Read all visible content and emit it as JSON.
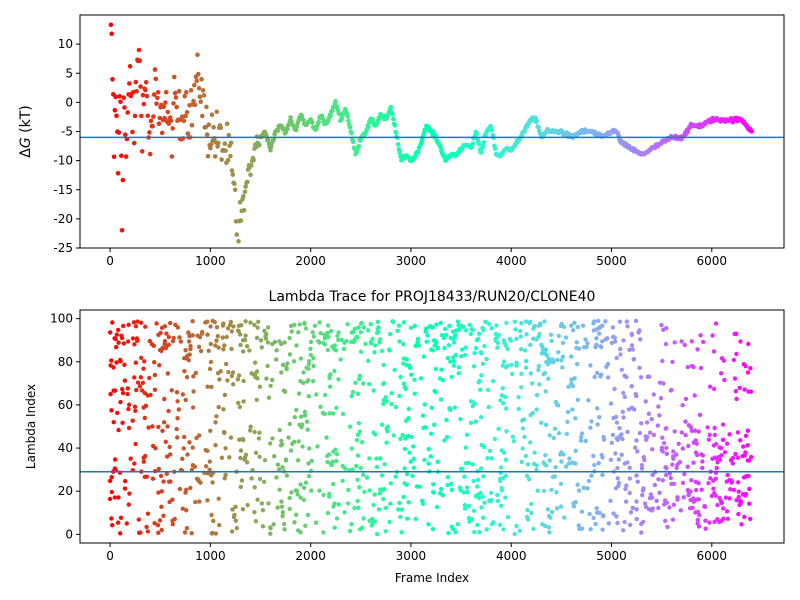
{
  "chart_data": [
    {
      "type": "scatter",
      "title": "",
      "xlabel": "",
      "ylabel": "ΔG (kT)",
      "ylabel_parts": {
        "delta": "Δ",
        "var": "G",
        "unit": " (kT)"
      },
      "xlim": [
        -300,
        6720
      ],
      "ylim": [
        -25,
        15
      ],
      "xticks": [
        0,
        1000,
        2000,
        3000,
        4000,
        5000,
        6000
      ],
      "yticks": [
        -25,
        -20,
        -15,
        -10,
        -5,
        0,
        5,
        10
      ],
      "hline": -6,
      "hline_color": "#1f77b4",
      "colormap": "rainbow",
      "n_frames": 6400,
      "grid": false,
      "series_description": "per-frame free energy estimate, colored by frame index",
      "trace_points": [
        [
          0,
          14
        ],
        [
          20,
          8
        ],
        [
          40,
          -8
        ],
        [
          60,
          4
        ],
        [
          80,
          -14
        ],
        [
          100,
          6
        ],
        [
          120,
          -18
        ],
        [
          140,
          2
        ],
        [
          160,
          -10
        ],
        [
          200,
          5
        ],
        [
          240,
          -6
        ],
        [
          280,
          10
        ],
        [
          320,
          -2
        ],
        [
          360,
          3
        ],
        [
          400,
          -8
        ],
        [
          450,
          2
        ],
        [
          500,
          -4
        ],
        [
          550,
          1
        ],
        [
          600,
          -6
        ],
        [
          650,
          0
        ],
        [
          700,
          -4
        ],
        [
          750,
          1
        ],
        [
          800,
          -3
        ],
        [
          850,
          2
        ],
        [
          900,
          4
        ],
        [
          950,
          -4
        ],
        [
          1000,
          -5
        ],
        [
          1050,
          -6
        ],
        [
          1100,
          -7
        ],
        [
          1150,
          -8
        ],
        [
          1200,
          -10
        ],
        [
          1250,
          -18
        ],
        [
          1270,
          -24
        ],
        [
          1300,
          -20
        ],
        [
          1350,
          -15
        ],
        [
          1400,
          -11
        ],
        [
          1450,
          -7
        ],
        [
          1500,
          -6
        ],
        [
          1550,
          -5
        ],
        [
          1600,
          -8
        ],
        [
          1650,
          -5
        ],
        [
          1700,
          -4
        ],
        [
          1750,
          -5
        ],
        [
          1800,
          -3
        ],
        [
          1850,
          -5
        ],
        [
          1900,
          -2
        ],
        [
          1950,
          -4
        ],
        [
          2000,
          -3
        ],
        [
          2050,
          -5
        ],
        [
          2100,
          -2
        ],
        [
          2150,
          -4
        ],
        [
          2200,
          -2
        ],
        [
          2250,
          0
        ],
        [
          2300,
          -3
        ],
        [
          2350,
          -1
        ],
        [
          2400,
          -5
        ],
        [
          2450,
          -9
        ],
        [
          2500,
          -6
        ],
        [
          2550,
          -5
        ],
        [
          2600,
          -3
        ],
        [
          2650,
          -4
        ],
        [
          2700,
          -2
        ],
        [
          2750,
          -3
        ],
        [
          2800,
          -1
        ],
        [
          2850,
          -5
        ],
        [
          2900,
          -10
        ],
        [
          2950,
          -9
        ],
        [
          3000,
          -10
        ],
        [
          3050,
          -9
        ],
        [
          3100,
          -7
        ],
        [
          3150,
          -4
        ],
        [
          3200,
          -5
        ],
        [
          3250,
          -6
        ],
        [
          3300,
          -8
        ],
        [
          3350,
          -10
        ],
        [
          3400,
          -9
        ],
        [
          3450,
          -9
        ],
        [
          3500,
          -8
        ],
        [
          3550,
          -7
        ],
        [
          3600,
          -8
        ],
        [
          3650,
          -5
        ],
        [
          3700,
          -9
        ],
        [
          3750,
          -5
        ],
        [
          3800,
          -4
        ],
        [
          3850,
          -9
        ],
        [
          3900,
          -9
        ],
        [
          3950,
          -8
        ],
        [
          4000,
          -8
        ],
        [
          4050,
          -7
        ],
        [
          4100,
          -6
        ],
        [
          4150,
          -4
        ],
        [
          4200,
          -3
        ],
        [
          4250,
          -3
        ],
        [
          4300,
          -6
        ],
        [
          4350,
          -5
        ],
        [
          4400,
          -5
        ],
        [
          4500,
          -5
        ],
        [
          4600,
          -6
        ],
        [
          4700,
          -5
        ],
        [
          4800,
          -5
        ],
        [
          4900,
          -6
        ],
        [
          5000,
          -5
        ],
        [
          5050,
          -5
        ],
        [
          5100,
          -7
        ],
        [
          5200,
          -8
        ],
        [
          5300,
          -9
        ],
        [
          5400,
          -8
        ],
        [
          5500,
          -7
        ],
        [
          5600,
          -6
        ],
        [
          5700,
          -6
        ],
        [
          5800,
          -4
        ],
        [
          5900,
          -4
        ],
        [
          6000,
          -3
        ],
        [
          6100,
          -3
        ],
        [
          6200,
          -3
        ],
        [
          6300,
          -3
        ],
        [
          6350,
          -4
        ],
        [
          6400,
          -5
        ]
      ]
    },
    {
      "type": "scatter",
      "title": "Lambda Trace for PROJ18433/RUN20/CLONE40",
      "xlabel": "Frame Index",
      "ylabel": "Lambda Index",
      "xlim": [
        -300,
        6720
      ],
      "ylim": [
        -4,
        104
      ],
      "xticks": [
        0,
        1000,
        2000,
        3000,
        4000,
        5000,
        6000
      ],
      "yticks": [
        0,
        20,
        40,
        60,
        80,
        100
      ],
      "hline": 29,
      "hline_color": "#1f77b4",
      "colormap": "rainbow",
      "n_frames": 6400,
      "grid": false,
      "series_description": "lambda state index per frame (0-99), colored by frame index"
    }
  ]
}
